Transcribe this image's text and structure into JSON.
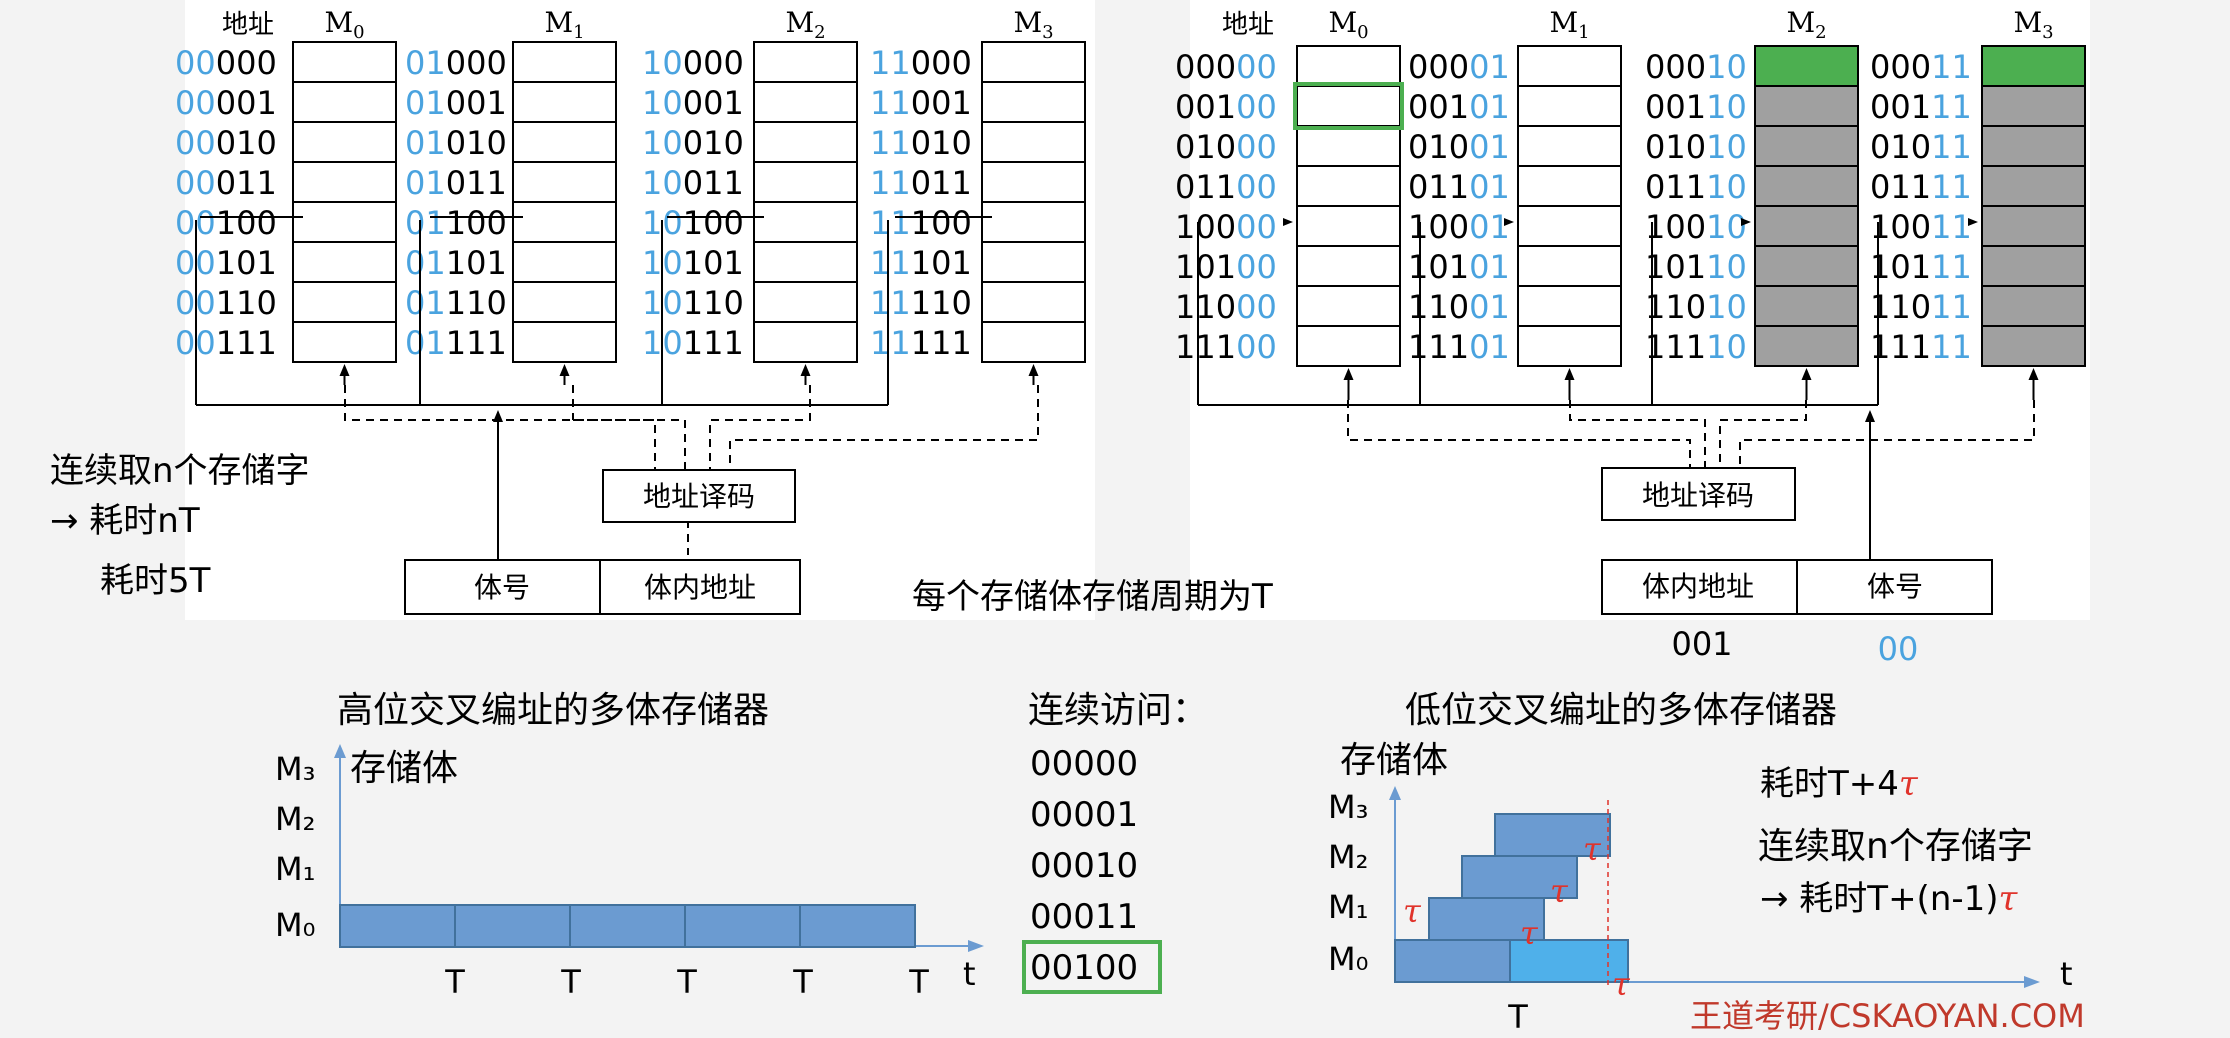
{
  "left_diagram": {
    "col_header": "地址",
    "modules": [
      {
        "name": "M",
        "sub": "0",
        "prefix": "00"
      },
      {
        "name": "M",
        "sub": "1",
        "prefix": "01"
      },
      {
        "name": "M",
        "sub": "2",
        "prefix": "10"
      },
      {
        "name": "M",
        "sub": "3",
        "prefix": "11"
      }
    ],
    "suffixes": [
      "000",
      "001",
      "010",
      "011",
      "100",
      "101",
      "110",
      "111"
    ],
    "decoder_label": "地址译码",
    "reg_fields": [
      "体号",
      "体内地址"
    ],
    "notes": [
      "连续取n个存储字",
      "→ 耗时nT",
      "耗时5T"
    ]
  },
  "right_diagram": {
    "col_header": "地址",
    "modules": [
      {
        "name": "M",
        "sub": "0",
        "suffix": "00",
        "state": "first-active"
      },
      {
        "name": "M",
        "sub": "1",
        "suffix": "01",
        "state": "empty"
      },
      {
        "name": "M",
        "sub": "2",
        "suffix": "10",
        "state": "gray"
      },
      {
        "name": "M",
        "sub": "3",
        "suffix": "11",
        "state": "gray"
      }
    ],
    "prefixes": [
      "000",
      "001",
      "010",
      "011",
      "100",
      "101",
      "110",
      "111"
    ],
    "decoder_label": "地址译码",
    "reg_fields": [
      "体内地址",
      "体号"
    ],
    "reg_values": [
      "001",
      "00"
    ]
  },
  "center_caption": "每个存储体存储周期为T",
  "high_chart": {
    "title": "高位交叉编址的多体存储器",
    "ylabel": "存储体",
    "y_ticks": [
      "M₃",
      "M₂",
      "M₁",
      "M₀"
    ],
    "x_ticks": [
      "T",
      "T",
      "T",
      "T",
      "T"
    ],
    "xlabel": "t"
  },
  "access_list": {
    "title": "连续访问：",
    "items": [
      "00000",
      "00001",
      "00010",
      "00011",
      "00100"
    ],
    "highlight_index": 4
  },
  "low_chart": {
    "title": "低位交叉编址的多体存储器",
    "ylabel": "存储体",
    "y_ticks": [
      "M₃",
      "M₂",
      "M₁",
      "M₀"
    ],
    "x_tick": "T",
    "xlabel": "t",
    "tau": "τ",
    "note1_prefix": "耗时T+4",
    "note2_line1": "连续取n个存储字",
    "note2_prefix": "→ 耗时T+(n-1)"
  },
  "watermark": "王道考研/CSKAOYAN.COM",
  "colors": {
    "blue_text": "#4aa3df",
    "bar": "#6b9bd1",
    "bar_light": "#4fb0ea",
    "green": "#4caf50",
    "gray": "#a0a0a0",
    "red": "#e0332b",
    "brand": "#c0392b"
  }
}
